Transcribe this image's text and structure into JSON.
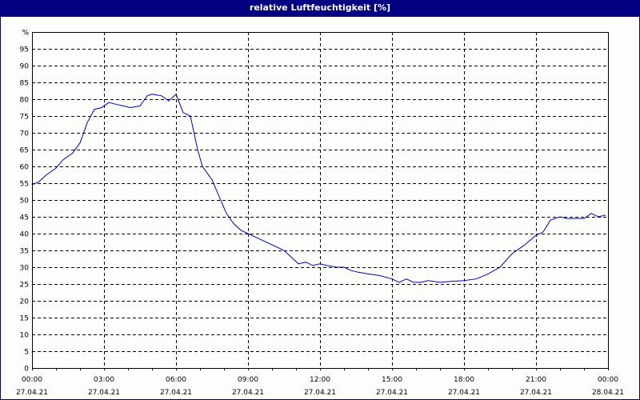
{
  "window": {
    "title": "relative Luftfeuchtigkeit [%]"
  },
  "colors": {
    "titlebar": "#000080",
    "line": "#0000c0",
    "grid": "#000000",
    "background": "#fcfefc"
  },
  "chart_data": {
    "type": "line",
    "title": "relative Luftfeuchtigkeit [%]",
    "xlabel": "",
    "ylabel": "%",
    "ylim": [
      0,
      100
    ],
    "yticks": [
      "0",
      "5",
      "10",
      "15",
      "20",
      "25",
      "30",
      "35",
      "40",
      "45",
      "50",
      "55",
      "60",
      "65",
      "70",
      "75",
      "80",
      "85",
      "90",
      "95",
      "%"
    ],
    "xticks": [
      {
        "time": "00:00",
        "date": "27.04.21"
      },
      {
        "time": "03:00",
        "date": "27.04.21"
      },
      {
        "time": "06:00",
        "date": "27.04.21"
      },
      {
        "time": "09:00",
        "date": "27.04.21"
      },
      {
        "time": "12:00",
        "date": "27.04.21"
      },
      {
        "time": "15:00",
        "date": "27.04.21"
      },
      {
        "time": "18:00",
        "date": "27.04.21"
      },
      {
        "time": "21:00",
        "date": "27.04.21"
      },
      {
        "time": "00:00",
        "date": "28.04.21"
      }
    ],
    "grid": true,
    "legend": null,
    "series": [
      {
        "name": "relative Luftfeuchtigkeit",
        "x_hours": [
          0,
          0.3,
          0.6,
          1.0,
          1.3,
          1.7,
          2.0,
          2.3,
          2.6,
          2.9,
          3.2,
          3.5,
          3.8,
          4.1,
          4.5,
          4.8,
          5.0,
          5.4,
          5.7,
          6.0,
          6.3,
          6.6,
          6.9,
          7.1,
          7.5,
          7.8,
          8.1,
          8.4,
          8.7,
          9.0,
          9.3,
          9.6,
          9.9,
          10.2,
          10.5,
          10.8,
          11.1,
          11.4,
          11.7,
          12.0,
          12.3,
          12.7,
          13.0,
          13.3,
          13.6,
          14.0,
          14.5,
          15.0,
          15.3,
          15.6,
          15.9,
          16.2,
          16.5,
          17.0,
          17.5,
          18.0,
          18.5,
          19.0,
          19.5,
          20.0,
          20.5,
          21.0,
          21.3,
          21.6,
          22.0,
          22.3,
          22.7,
          23.0,
          23.3,
          23.6,
          23.9
        ],
        "values": [
          54.5,
          55.5,
          57.5,
          59.5,
          62,
          64,
          67,
          73,
          77,
          77.5,
          79,
          78.5,
          78,
          77.5,
          78,
          81,
          81.5,
          81,
          79.5,
          81.5,
          76,
          75,
          65,
          60,
          56,
          51,
          46,
          43,
          41,
          40,
          39,
          38,
          37,
          36,
          35,
          33,
          31,
          31.5,
          30.5,
          31,
          30.5,
          30,
          30,
          29,
          28.5,
          28,
          27.5,
          26.5,
          25.5,
          26.5,
          25.5,
          25.5,
          26,
          25.5,
          25.8,
          26,
          26.5,
          28,
          30,
          34,
          36.5,
          39.5,
          40.5,
          44,
          45,
          44.5,
          44.5,
          44.5,
          46,
          45,
          45.5
        ]
      }
    ]
  }
}
